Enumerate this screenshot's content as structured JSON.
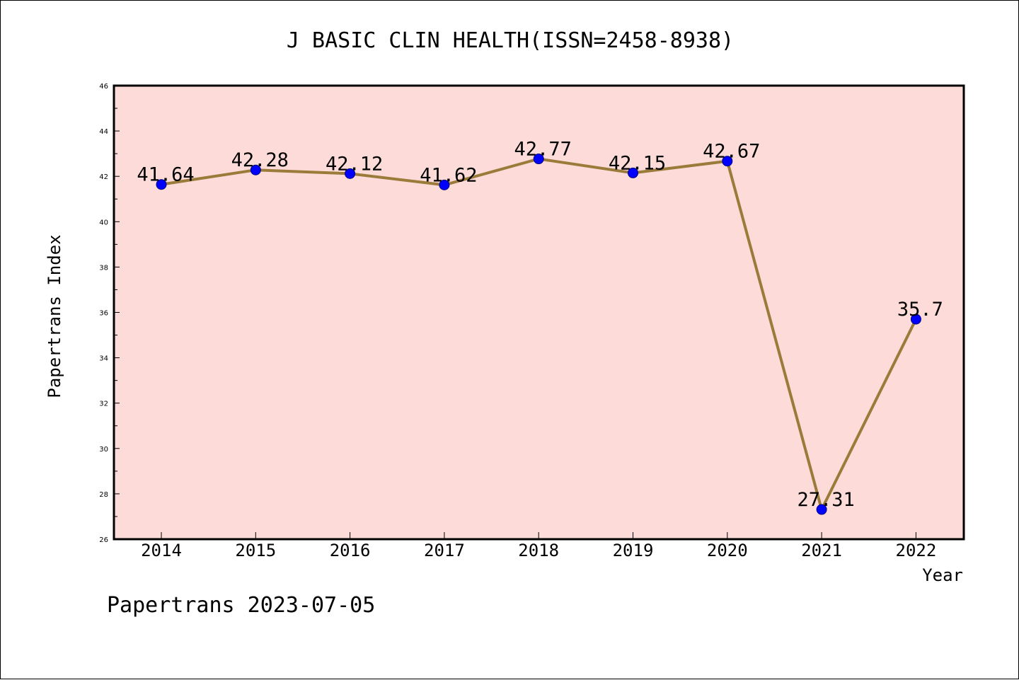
{
  "colors": {
    "plot_background": "#fddbd8",
    "line": "#9a7b3a",
    "marker_fill": "#0000ff",
    "marker_edge": "#000080",
    "axes": "#000000"
  },
  "footer": {
    "text": "Papertrans 2023-07-05"
  },
  "chart_data": {
    "type": "line",
    "title": "J BASIC CLIN HEALTH(ISSN=2458-8938)",
    "xlabel": "Year",
    "ylabel": "Papertrans Index",
    "categories": [
      "2014",
      "2015",
      "2016",
      "2017",
      "2018",
      "2019",
      "2020",
      "2021",
      "2022"
    ],
    "series": [
      {
        "values": [
          41.64,
          42.28,
          42.12,
          41.62,
          42.77,
          42.15,
          42.67,
          27.31,
          35.7
        ]
      }
    ],
    "data_labels": [
      "41.64",
      "42.28",
      "42.12",
      "41.62",
      "42.77",
      "42.15",
      "42.67",
      "27.31",
      "35.7"
    ],
    "ylim": [
      26,
      46
    ],
    "yticks": [
      "26",
      "28",
      "30",
      "32",
      "34",
      "36",
      "38",
      "40",
      "42",
      "44",
      "46"
    ],
    "grid": false,
    "legend": "none"
  }
}
